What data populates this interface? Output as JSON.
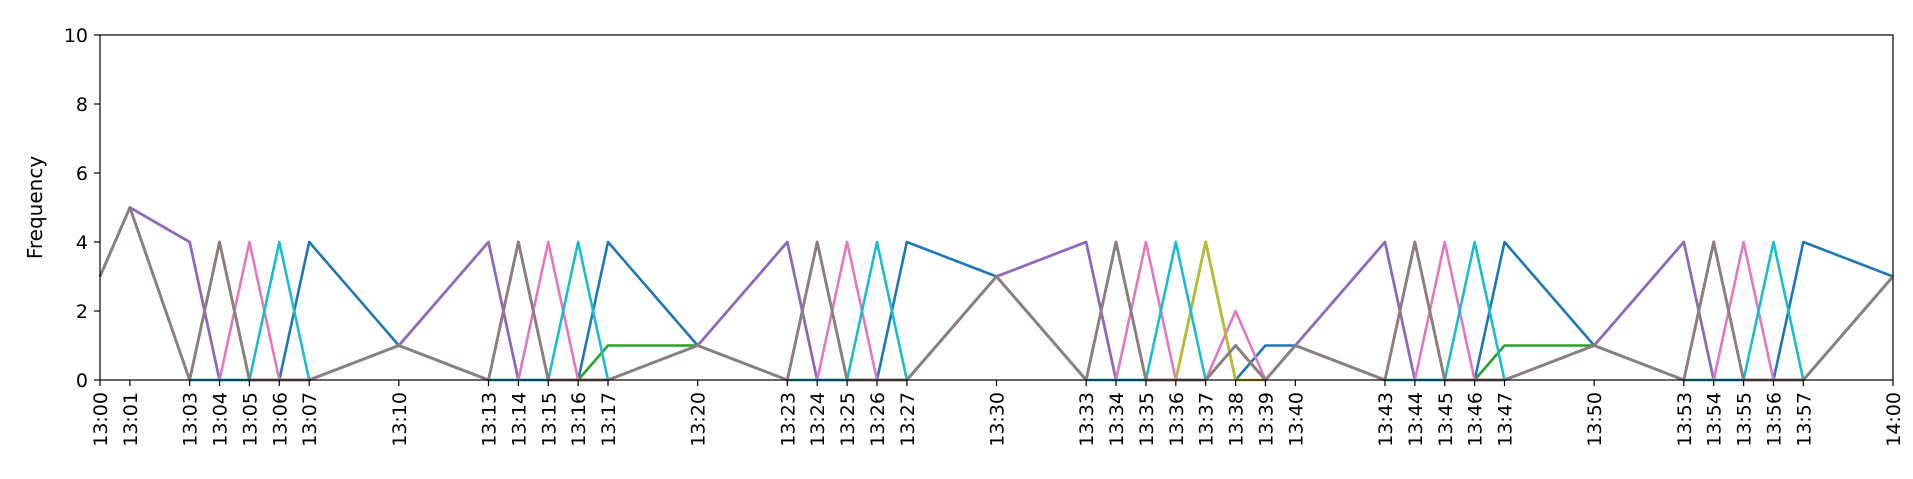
{
  "chart_data": {
    "type": "line",
    "title": "",
    "xlabel": "",
    "ylabel": "Frequency",
    "ylim": [
      0,
      10
    ],
    "xlim": [
      "13:00",
      "14:00"
    ],
    "yticks": [
      0,
      2,
      4,
      6,
      8,
      10
    ],
    "xticks": [
      "13:00",
      "13:01",
      "13:03",
      "13:04",
      "13:05",
      "13:06",
      "13:07",
      "13:10",
      "13:13",
      "13:14",
      "13:15",
      "13:16",
      "13:17",
      "13:20",
      "13:23",
      "13:24",
      "13:25",
      "13:26",
      "13:27",
      "13:30",
      "13:33",
      "13:34",
      "13:35",
      "13:36",
      "13:37",
      "13:38",
      "13:39",
      "13:40",
      "13:43",
      "13:44",
      "13:45",
      "13:46",
      "13:47",
      "13:50",
      "13:53",
      "13:54",
      "13:55",
      "13:56",
      "13:57",
      "14:00"
    ],
    "grid": false,
    "legend": false,
    "x": [
      "13:00",
      "13:01",
      "13:03",
      "13:04",
      "13:05",
      "13:06",
      "13:07",
      "13:10",
      "13:13",
      "13:14",
      "13:15",
      "13:16",
      "13:17",
      "13:20",
      "13:23",
      "13:24",
      "13:25",
      "13:26",
      "13:27",
      "13:30",
      "13:33",
      "13:34",
      "13:35",
      "13:36",
      "13:37",
      "13:38",
      "13:39",
      "13:40",
      "13:43",
      "13:44",
      "13:45",
      "13:46",
      "13:47",
      "13:50",
      "13:53",
      "13:54",
      "13:55",
      "13:56",
      "13:57",
      "14:00"
    ],
    "series": [
      {
        "color": "#1f77b4",
        "values": [
          3,
          5,
          4,
          0,
          0,
          0,
          4,
          1,
          4,
          0,
          0,
          0,
          4,
          1,
          4,
          0,
          0,
          0,
          4,
          3,
          4,
          0,
          0,
          0,
          4,
          0,
          1,
          1,
          4,
          0,
          0,
          0,
          4,
          1,
          4,
          0,
          0,
          0,
          4,
          3
        ]
      },
      {
        "color": "#ff7f0e",
        "values": [
          3,
          5,
          0,
          4,
          0,
          0,
          0,
          1,
          0,
          4,
          0,
          0,
          0,
          1,
          0,
          4,
          0,
          0,
          0,
          3,
          0,
          4,
          0,
          0,
          0,
          1,
          0,
          1,
          0,
          4,
          0,
          0,
          0,
          1,
          0,
          4,
          0,
          0,
          0,
          3
        ]
      },
      {
        "color": "#2ca02c",
        "values": [
          3,
          5,
          0,
          4,
          0,
          0,
          0,
          1,
          0,
          4,
          0,
          0,
          1,
          1,
          0,
          4,
          0,
          0,
          0,
          3,
          0,
          4,
          0,
          0,
          0,
          1,
          0,
          1,
          0,
          4,
          0,
          0,
          1,
          1,
          0,
          4,
          0,
          0,
          0,
          3
        ]
      },
      {
        "color": "#d62728",
        "values": [
          3,
          5,
          0,
          4,
          0,
          0,
          0,
          1,
          0,
          4,
          0,
          0,
          0,
          1,
          0,
          4,
          0,
          0,
          0,
          3,
          0,
          4,
          0,
          0,
          0,
          1,
          0,
          1,
          0,
          4,
          0,
          0,
          0,
          1,
          0,
          4,
          0,
          0,
          0,
          3
        ]
      },
      {
        "color": "#9467bd",
        "values": [
          3,
          5,
          4,
          0,
          0,
          0,
          0,
          1,
          4,
          0,
          0,
          0,
          0,
          1,
          4,
          0,
          0,
          0,
          0,
          3,
          4,
          0,
          0,
          0,
          0,
          1,
          0,
          1,
          4,
          0,
          0,
          0,
          0,
          1,
          4,
          0,
          0,
          0,
          0,
          3
        ]
      },
      {
        "color": "#e377c2",
        "values": [
          3,
          5,
          0,
          0,
          4,
          0,
          0,
          1,
          0,
          0,
          4,
          0,
          0,
          1,
          0,
          0,
          4,
          0,
          0,
          3,
          0,
          0,
          4,
          0,
          0,
          2,
          0,
          1,
          0,
          0,
          4,
          0,
          0,
          1,
          0,
          0,
          4,
          0,
          0,
          3
        ]
      },
      {
        "color": "#bcbd22",
        "values": [
          3,
          5,
          0,
          4,
          0,
          0,
          0,
          1,
          0,
          4,
          0,
          0,
          0,
          1,
          0,
          4,
          0,
          0,
          0,
          3,
          0,
          4,
          0,
          0,
          4,
          0,
          0,
          1,
          0,
          4,
          0,
          0,
          0,
          1,
          0,
          4,
          0,
          0,
          0,
          3
        ]
      },
      {
        "color": "#17becf",
        "values": [
          3,
          5,
          0,
          0,
          0,
          4,
          0,
          1,
          0,
          0,
          0,
          4,
          0,
          1,
          0,
          0,
          0,
          4,
          0,
          3,
          0,
          0,
          0,
          4,
          0,
          1,
          0,
          1,
          0,
          0,
          0,
          4,
          0,
          1,
          0,
          0,
          0,
          4,
          0,
          3
        ]
      },
      {
        "color": "#7f7f7f",
        "values": [
          3,
          5,
          0,
          4,
          0,
          0,
          0,
          1,
          0,
          4,
          0,
          0,
          0,
          1,
          0,
          4,
          0,
          0,
          0,
          3,
          0,
          4,
          0,
          0,
          0,
          1,
          0,
          1,
          0,
          4,
          0,
          0,
          0,
          1,
          0,
          4,
          0,
          0,
          0,
          3
        ]
      },
      {
        "color": "#8c7e82",
        "values": [
          3,
          5,
          0,
          4,
          0,
          0,
          0,
          1,
          0,
          4,
          0,
          0,
          0,
          1,
          0,
          4,
          0,
          0,
          0,
          3,
          0,
          4,
          0,
          0,
          0,
          1,
          0,
          1,
          0,
          4,
          0,
          0,
          0,
          1,
          0,
          4,
          0,
          0,
          0,
          3
        ]
      }
    ]
  }
}
